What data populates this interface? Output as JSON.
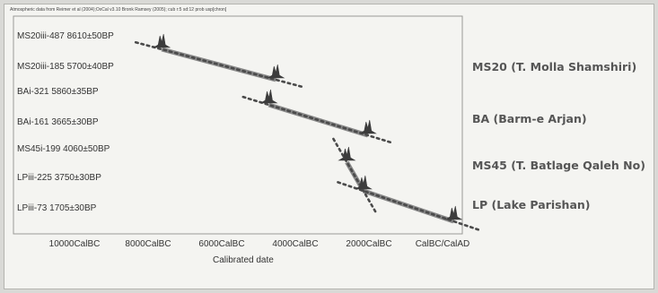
{
  "caption": "Atmospheric data from Reimer et al (2004);OxCal v3.10 Bronk Ramsey (2005); cub r:5 sd:12 prob usp[chron]",
  "groups": [
    "MS20 (T. Molla Shamshiri)",
    "BA (Barm-e Arjan)",
    "MS45 (T. Batlage Qaleh No)",
    "LP (Lake Parishan)"
  ],
  "colors": {
    "segment": "#8a8a8a",
    "dots": "#4a4a4a",
    "text": "#333333",
    "background": "#f4f4f1"
  },
  "chart_data": {
    "type": "scatter",
    "title": "",
    "xlabel": "Calibrated date",
    "ylabel": "",
    "x_tick_labels": [
      "10000CalBC",
      "8000CalBC",
      "6000CalBC",
      "4000CalBC",
      "2000CalBC",
      "CalBC/CalAD"
    ],
    "x_ticks": [
      -10000,
      -8000,
      -6000,
      -4000,
      -2000,
      0
    ],
    "xlim": [
      -11600,
      1000
    ],
    "samples": [
      {
        "label": "MS20iii-487  8610±50BP",
        "calibrated_date": -7630
      },
      {
        "label": "MS20iii-185  5700±40BP",
        "calibrated_date": -4530
      },
      {
        "label": "BAi-321  5860±35BP",
        "calibrated_date": -4720
      },
      {
        "label": "BAi-161  3665±30BP",
        "calibrated_date": -2030
      },
      {
        "label": "MS45i-199  4060±50BP",
        "calibrated_date": -2600
      },
      {
        "label": "LPiii-225  3750±30BP",
        "calibrated_date": -2150
      },
      {
        "label": "LPiii-73  1705±30BP",
        "calibrated_date": 300
      }
    ],
    "sequences": [
      {
        "group": "MS20 (T. Molla Shamshiri)",
        "from": -7630,
        "to": -4530
      },
      {
        "group": "BA (Barm-e Arjan)",
        "from": -4720,
        "to": -2030
      },
      {
        "group": "MS45 (T. Batlage Qaleh No)",
        "from": -2600,
        "to": -2150
      },
      {
        "group": "LP (Lake Parishan)",
        "from": -2150,
        "to": 300
      }
    ],
    "grid": false,
    "legend": "right"
  }
}
